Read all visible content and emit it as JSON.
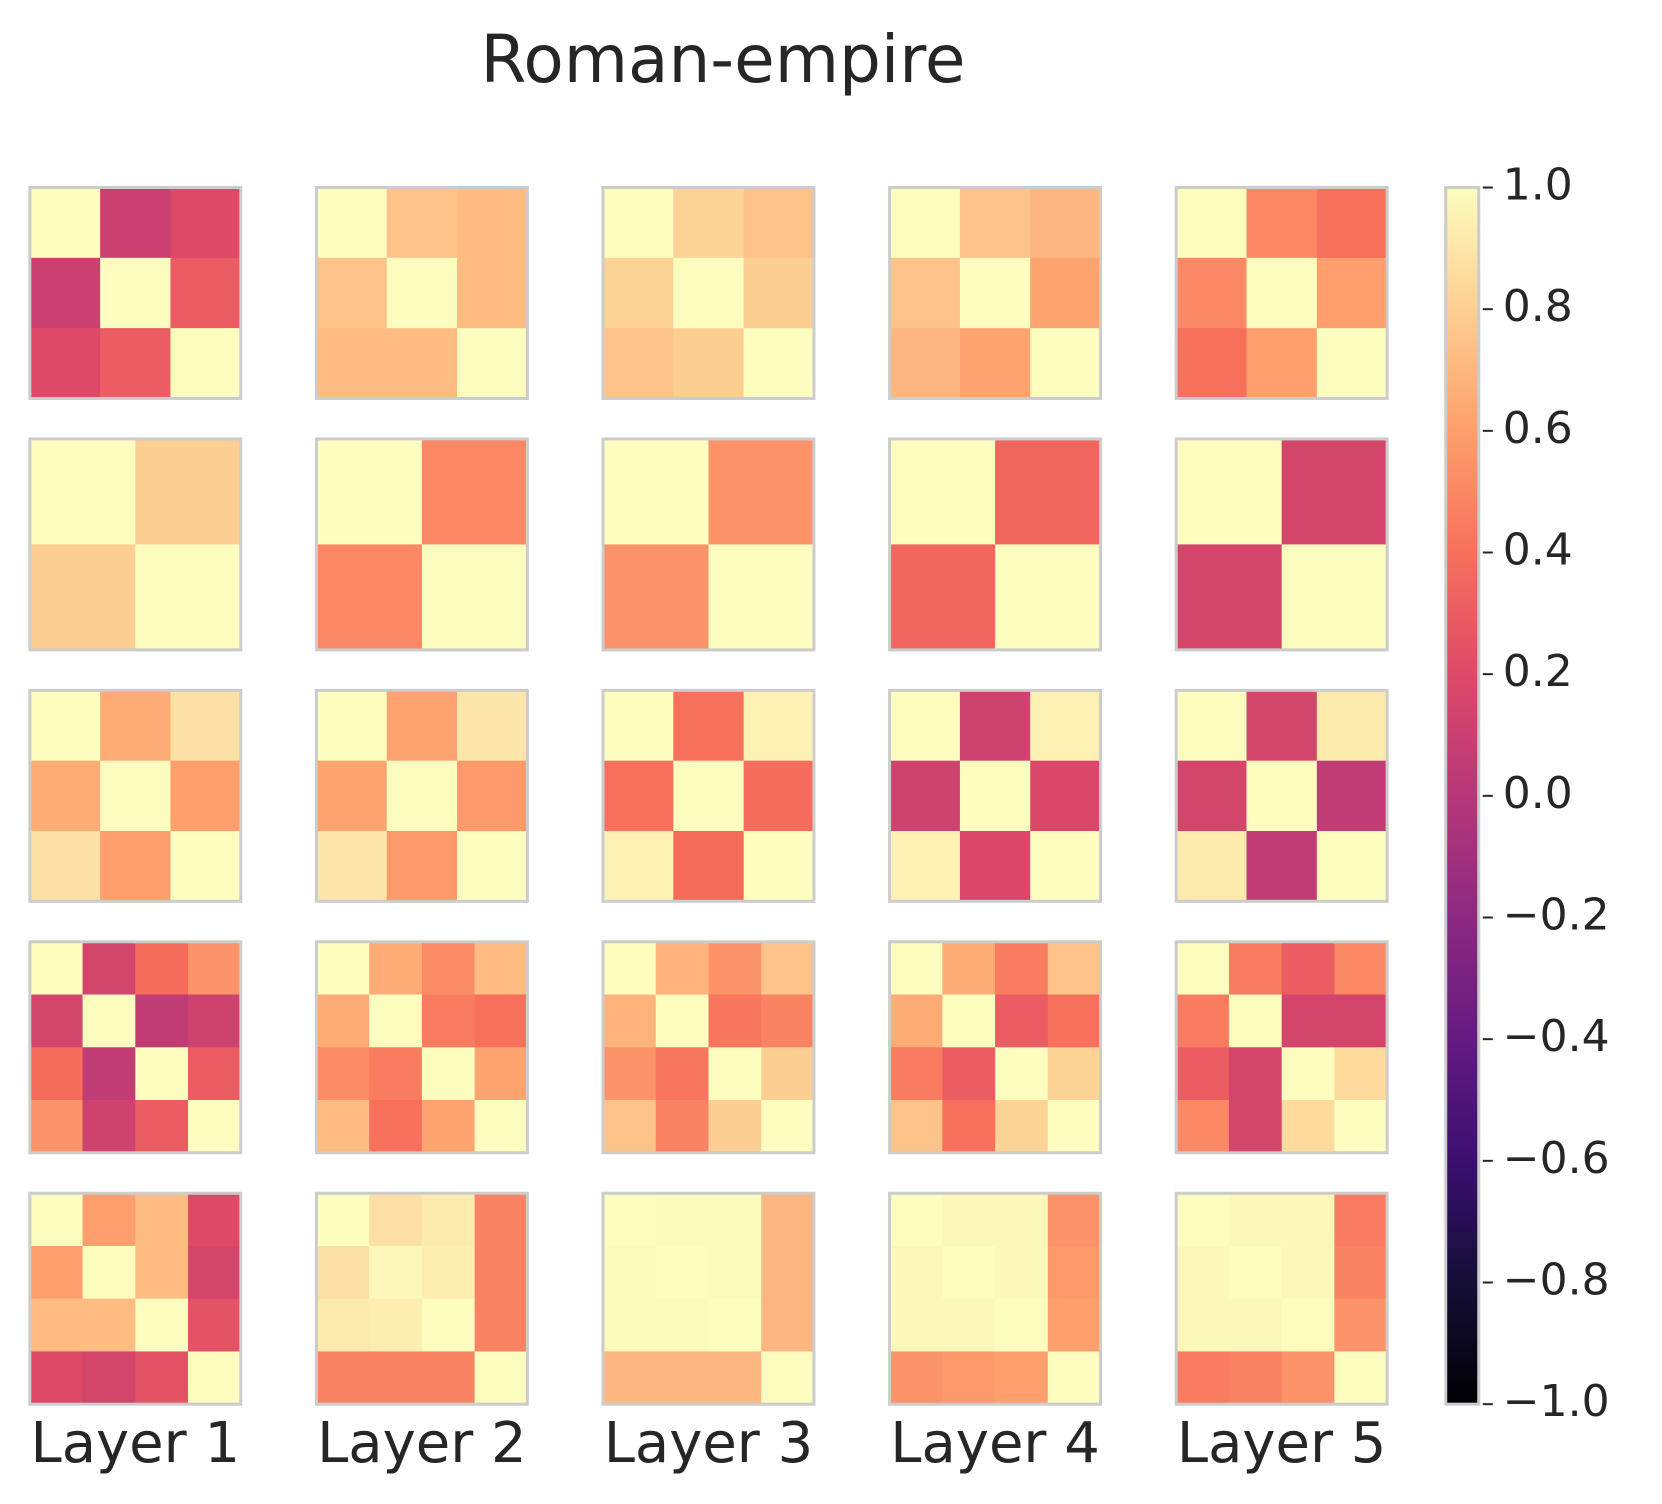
{
  "chart_data": {
    "type": "heatmap",
    "title": "Roman-empire",
    "colormap": "magma",
    "layers": [
      "Layer 1",
      "Layer 2",
      "Layer 3",
      "Layer 4",
      "Layer 5"
    ],
    "zlim": [
      -1,
      1
    ],
    "zticks": [
      {
        "value": -1,
        "label": "−1.0"
      },
      {
        "value": -0.8,
        "label": "−0.8"
      },
      {
        "value": -0.6,
        "label": "−0.6"
      },
      {
        "value": -0.4,
        "label": "−0.4"
      },
      {
        "value": -0.2,
        "label": "−0.2"
      },
      {
        "value": 0,
        "label": "0.0"
      },
      0.2,
      0.4,
      0.6,
      0.8,
      {
        "value": 1,
        "label": "1.0"
      }
    ],
    "panels": [
      [
        [
          [
            1,
            0.1,
            0.2
          ],
          [
            0.1,
            1,
            0.3
          ],
          [
            0.2,
            0.3,
            1
          ]
        ],
        [
          [
            1,
            0.75,
            0.72
          ],
          [
            0.75,
            1,
            0.72
          ],
          [
            0.72,
            0.72,
            1
          ]
        ],
        [
          [
            1,
            0.82,
            0.75
          ],
          [
            0.82,
            1,
            0.8
          ],
          [
            0.75,
            0.8,
            1
          ]
        ],
        [
          [
            1,
            0.75,
            0.7
          ],
          [
            0.75,
            1,
            0.62
          ],
          [
            0.7,
            0.62,
            1
          ]
        ],
        [
          [
            1,
            0.5,
            0.4
          ],
          [
            0.5,
            1,
            0.6
          ],
          [
            0.4,
            0.6,
            1
          ]
        ]
      ],
      [
        [
          [
            1,
            0.8
          ],
          [
            0.8,
            1
          ]
        ],
        [
          [
            1,
            0.5
          ],
          [
            0.5,
            1
          ]
        ],
        [
          [
            1,
            0.55
          ],
          [
            0.55,
            1
          ]
        ],
        [
          [
            1,
            0.35
          ],
          [
            0.35,
            1
          ]
        ],
        [
          [
            1,
            0.15
          ],
          [
            0.15,
            1
          ]
        ]
      ],
      [
        [
          [
            1,
            0.65,
            0.88
          ],
          [
            0.65,
            1,
            0.6
          ],
          [
            0.88,
            0.6,
            1
          ]
        ],
        [
          [
            1,
            0.62,
            0.9
          ],
          [
            0.62,
            1,
            0.58
          ],
          [
            0.9,
            0.58,
            1
          ]
        ],
        [
          [
            1,
            0.4,
            0.95
          ],
          [
            0.4,
            1,
            0.38
          ],
          [
            0.95,
            0.38,
            1
          ]
        ],
        [
          [
            1,
            0.12,
            0.95
          ],
          [
            0.12,
            1,
            0.18
          ],
          [
            0.95,
            0.18,
            1
          ]
        ],
        [
          [
            1,
            0.15,
            0.92
          ],
          [
            0.15,
            1,
            0.05
          ],
          [
            0.92,
            0.05,
            1
          ]
        ]
      ],
      [
        [
          [
            1,
            0.15,
            0.38,
            0.55
          ],
          [
            0.15,
            1,
            0.05,
            0.12
          ],
          [
            0.38,
            0.05,
            1,
            0.3
          ],
          [
            0.55,
            0.12,
            0.3,
            1
          ]
        ],
        [
          [
            1,
            0.65,
            0.52,
            0.72
          ],
          [
            0.65,
            1,
            0.45,
            0.4
          ],
          [
            0.52,
            0.45,
            1,
            0.62
          ],
          [
            0.72,
            0.4,
            0.62,
            1
          ]
        ],
        [
          [
            1,
            0.68,
            0.55,
            0.75
          ],
          [
            0.68,
            1,
            0.42,
            0.48
          ],
          [
            0.55,
            0.42,
            1,
            0.8
          ],
          [
            0.75,
            0.48,
            0.8,
            1
          ]
        ],
        [
          [
            1,
            0.65,
            0.45,
            0.75
          ],
          [
            0.65,
            1,
            0.3,
            0.4
          ],
          [
            0.45,
            0.3,
            1,
            0.82
          ],
          [
            0.75,
            0.4,
            0.82,
            1
          ]
        ],
        [
          [
            1,
            0.45,
            0.3,
            0.5
          ],
          [
            0.45,
            1,
            0.15,
            0.15
          ],
          [
            0.3,
            0.15,
            1,
            0.85
          ],
          [
            0.5,
            0.15,
            0.85,
            1
          ]
        ]
      ],
      [
        [
          [
            1,
            0.6,
            0.72,
            0.2
          ],
          [
            0.6,
            1,
            0.72,
            0.15
          ],
          [
            0.72,
            0.72,
            1,
            0.25
          ],
          [
            0.2,
            0.15,
            0.25,
            1
          ]
        ],
        [
          [
            1,
            0.88,
            0.92,
            0.48
          ],
          [
            0.88,
            0.98,
            0.93,
            0.48
          ],
          [
            0.92,
            0.93,
            1,
            0.48
          ],
          [
            0.48,
            0.48,
            0.48,
            1
          ]
        ],
        [
          [
            1,
            0.99,
            0.99,
            0.7
          ],
          [
            0.99,
            1,
            0.99,
            0.7
          ],
          [
            0.99,
            0.99,
            1,
            0.7
          ],
          [
            0.7,
            0.7,
            0.7,
            1
          ]
        ],
        [
          [
            1,
            0.98,
            0.98,
            0.55
          ],
          [
            0.98,
            1,
            0.98,
            0.58
          ],
          [
            0.98,
            0.98,
            1,
            0.6
          ],
          [
            0.55,
            0.58,
            0.6,
            1
          ]
        ],
        [
          [
            1,
            0.98,
            0.98,
            0.45
          ],
          [
            0.98,
            1,
            0.98,
            0.48
          ],
          [
            0.98,
            0.98,
            1,
            0.55
          ],
          [
            0.45,
            0.48,
            0.55,
            1
          ]
        ]
      ]
    ]
  }
}
